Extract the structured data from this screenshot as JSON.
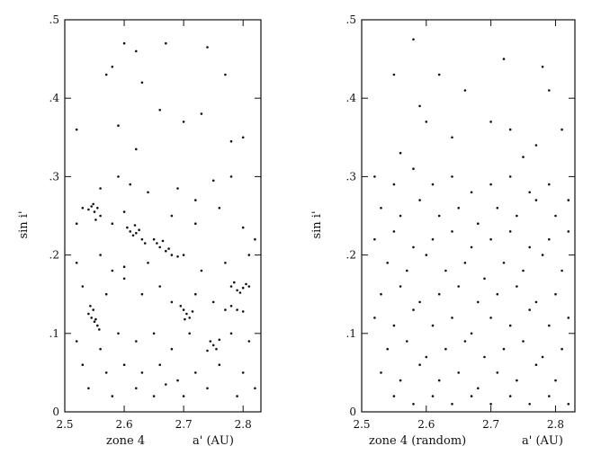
{
  "chart_data": [
    {
      "type": "scatter",
      "xlabel_left": "zone 4",
      "xlabel_right": "a' (AU)",
      "ylabel": "sin i'",
      "xlim": [
        2.5,
        2.83
      ],
      "ylim": [
        0,
        0.5
      ],
      "xticks": [
        2.5,
        2.6,
        2.7,
        2.8
      ],
      "xtick_labels": [
        "2.5",
        "2.6",
        "2.7",
        "2.8"
      ],
      "yticks": [
        0,
        0.1,
        0.2,
        0.3,
        0.4,
        0.5
      ],
      "ytick_labels": [
        "0",
        ".1",
        ".2",
        ".3",
        ".4",
        ".5"
      ],
      "grid": false,
      "points": [
        [
          2.53,
          0.26
        ],
        [
          2.54,
          0.258
        ],
        [
          2.545,
          0.262
        ],
        [
          2.55,
          0.255
        ],
        [
          2.555,
          0.26
        ],
        [
          2.56,
          0.25
        ],
        [
          2.548,
          0.265
        ],
        [
          2.552,
          0.245
        ],
        [
          2.61,
          0.23
        ],
        [
          2.615,
          0.225
        ],
        [
          2.62,
          0.228
        ],
        [
          2.625,
          0.232
        ],
        [
          2.63,
          0.22
        ],
        [
          2.605,
          0.235
        ],
        [
          2.635,
          0.215
        ],
        [
          2.618,
          0.238
        ],
        [
          2.65,
          0.22
        ],
        [
          2.66,
          0.21
        ],
        [
          2.67,
          0.205
        ],
        [
          2.68,
          0.2
        ],
        [
          2.69,
          0.198
        ],
        [
          2.655,
          0.215
        ],
        [
          2.675,
          0.208
        ],
        [
          2.665,
          0.218
        ],
        [
          2.545,
          0.12
        ],
        [
          2.55,
          0.115
        ],
        [
          2.555,
          0.11
        ],
        [
          2.54,
          0.125
        ],
        [
          2.548,
          0.13
        ],
        [
          2.552,
          0.118
        ],
        [
          2.558,
          0.105
        ],
        [
          2.543,
          0.135
        ],
        [
          2.7,
          0.13
        ],
        [
          2.705,
          0.125
        ],
        [
          2.71,
          0.12
        ],
        [
          2.695,
          0.135
        ],
        [
          2.715,
          0.128
        ],
        [
          2.702,
          0.118
        ],
        [
          2.75,
          0.085
        ],
        [
          2.745,
          0.09
        ],
        [
          2.755,
          0.08
        ],
        [
          2.74,
          0.078
        ],
        [
          2.76,
          0.092
        ],
        [
          2.78,
          0.16
        ],
        [
          2.79,
          0.155
        ],
        [
          2.8,
          0.158
        ],
        [
          2.81,
          0.16
        ],
        [
          2.795,
          0.152
        ],
        [
          2.805,
          0.163
        ],
        [
          2.785,
          0.165
        ],
        [
          2.77,
          0.13
        ],
        [
          2.78,
          0.135
        ],
        [
          2.79,
          0.13
        ],
        [
          2.8,
          0.128
        ],
        [
          2.52,
          0.36
        ],
        [
          2.57,
          0.43
        ],
        [
          2.58,
          0.44
        ],
        [
          2.6,
          0.47
        ],
        [
          2.62,
          0.46
        ],
        [
          2.67,
          0.47
        ],
        [
          2.74,
          0.465
        ],
        [
          2.77,
          0.43
        ],
        [
          2.59,
          0.365
        ],
        [
          2.62,
          0.335
        ],
        [
          2.66,
          0.385
        ],
        [
          2.7,
          0.37
        ],
        [
          2.78,
          0.345
        ],
        [
          2.8,
          0.35
        ],
        [
          2.63,
          0.42
        ],
        [
          2.73,
          0.38
        ],
        [
          2.59,
          0.3
        ],
        [
          2.61,
          0.29
        ],
        [
          2.64,
          0.28
        ],
        [
          2.69,
          0.285
        ],
        [
          2.75,
          0.295
        ],
        [
          2.78,
          0.3
        ],
        [
          2.72,
          0.27
        ],
        [
          2.56,
          0.285
        ],
        [
          2.52,
          0.24
        ],
        [
          2.58,
          0.24
        ],
        [
          2.6,
          0.255
        ],
        [
          2.68,
          0.25
        ],
        [
          2.72,
          0.24
        ],
        [
          2.76,
          0.26
        ],
        [
          2.8,
          0.235
        ],
        [
          2.82,
          0.22
        ],
        [
          2.52,
          0.19
        ],
        [
          2.56,
          0.2
        ],
        [
          2.58,
          0.18
        ],
        [
          2.6,
          0.185
        ],
        [
          2.64,
          0.19
        ],
        [
          2.7,
          0.2
        ],
        [
          2.73,
          0.18
        ],
        [
          2.77,
          0.19
        ],
        [
          2.81,
          0.2
        ],
        [
          2.53,
          0.16
        ],
        [
          2.57,
          0.15
        ],
        [
          2.6,
          0.17
        ],
        [
          2.63,
          0.15
        ],
        [
          2.66,
          0.16
        ],
        [
          2.68,
          0.14
        ],
        [
          2.72,
          0.15
        ],
        [
          2.75,
          0.14
        ],
        [
          2.52,
          0.09
        ],
        [
          2.56,
          0.08
        ],
        [
          2.59,
          0.1
        ],
        [
          2.62,
          0.09
        ],
        [
          2.65,
          0.1
        ],
        [
          2.68,
          0.08
        ],
        [
          2.71,
          0.1
        ],
        [
          2.78,
          0.1
        ],
        [
          2.81,
          0.09
        ],
        [
          2.53,
          0.06
        ],
        [
          2.57,
          0.05
        ],
        [
          2.6,
          0.06
        ],
        [
          2.63,
          0.05
        ],
        [
          2.66,
          0.06
        ],
        [
          2.69,
          0.04
        ],
        [
          2.72,
          0.05
        ],
        [
          2.76,
          0.06
        ],
        [
          2.8,
          0.05
        ],
        [
          2.54,
          0.03
        ],
        [
          2.58,
          0.02
        ],
        [
          2.62,
          0.03
        ],
        [
          2.65,
          0.02
        ],
        [
          2.67,
          0.035
        ],
        [
          2.7,
          0.02
        ],
        [
          2.74,
          0.03
        ],
        [
          2.79,
          0.02
        ],
        [
          2.82,
          0.03
        ]
      ]
    },
    {
      "type": "scatter",
      "xlabel_left": "zone 4 (random)",
      "xlabel_right": "a' (AU)",
      "ylabel": "sin i'",
      "xlim": [
        2.5,
        2.83
      ],
      "ylim": [
        0,
        0.5
      ],
      "xticks": [
        2.5,
        2.6,
        2.7,
        2.8
      ],
      "xtick_labels": [
        "2.5",
        "2.6",
        "2.7",
        "2.8"
      ],
      "yticks": [
        0,
        0.1,
        0.2,
        0.3,
        0.4,
        0.5
      ],
      "ytick_labels": [
        "0",
        ".1",
        ".2",
        ".3",
        ".4",
        ".5"
      ],
      "grid": false,
      "points": [
        [
          2.55,
          0.43
        ],
        [
          2.58,
          0.475
        ],
        [
          2.62,
          0.43
        ],
        [
          2.66,
          0.41
        ],
        [
          2.72,
          0.45
        ],
        [
          2.78,
          0.44
        ],
        [
          2.79,
          0.41
        ],
        [
          2.59,
          0.39
        ],
        [
          2.6,
          0.37
        ],
        [
          2.64,
          0.35
        ],
        [
          2.7,
          0.37
        ],
        [
          2.73,
          0.36
        ],
        [
          2.77,
          0.34
        ],
        [
          2.81,
          0.36
        ],
        [
          2.56,
          0.33
        ],
        [
          2.75,
          0.325
        ],
        [
          2.52,
          0.3
        ],
        [
          2.55,
          0.29
        ],
        [
          2.58,
          0.31
        ],
        [
          2.61,
          0.29
        ],
        [
          2.64,
          0.3
        ],
        [
          2.67,
          0.28
        ],
        [
          2.7,
          0.29
        ],
        [
          2.73,
          0.3
        ],
        [
          2.76,
          0.28
        ],
        [
          2.79,
          0.29
        ],
        [
          2.82,
          0.27
        ],
        [
          2.53,
          0.26
        ],
        [
          2.56,
          0.25
        ],
        [
          2.59,
          0.27
        ],
        [
          2.62,
          0.25
        ],
        [
          2.65,
          0.26
        ],
        [
          2.68,
          0.24
        ],
        [
          2.71,
          0.26
        ],
        [
          2.74,
          0.25
        ],
        [
          2.77,
          0.27
        ],
        [
          2.8,
          0.25
        ],
        [
          2.52,
          0.22
        ],
        [
          2.55,
          0.23
        ],
        [
          2.58,
          0.21
        ],
        [
          2.61,
          0.22
        ],
        [
          2.64,
          0.23
        ],
        [
          2.67,
          0.21
        ],
        [
          2.7,
          0.22
        ],
        [
          2.73,
          0.23
        ],
        [
          2.76,
          0.21
        ],
        [
          2.79,
          0.22
        ],
        [
          2.82,
          0.23
        ],
        [
          2.54,
          0.19
        ],
        [
          2.57,
          0.18
        ],
        [
          2.6,
          0.2
        ],
        [
          2.63,
          0.18
        ],
        [
          2.66,
          0.19
        ],
        [
          2.69,
          0.17
        ],
        [
          2.72,
          0.19
        ],
        [
          2.75,
          0.18
        ],
        [
          2.78,
          0.2
        ],
        [
          2.81,
          0.18
        ],
        [
          2.53,
          0.15
        ],
        [
          2.56,
          0.16
        ],
        [
          2.59,
          0.14
        ],
        [
          2.62,
          0.15
        ],
        [
          2.65,
          0.16
        ],
        [
          2.68,
          0.14
        ],
        [
          2.71,
          0.15
        ],
        [
          2.74,
          0.16
        ],
        [
          2.77,
          0.14
        ],
        [
          2.8,
          0.15
        ],
        [
          2.52,
          0.12
        ],
        [
          2.55,
          0.11
        ],
        [
          2.58,
          0.13
        ],
        [
          2.61,
          0.11
        ],
        [
          2.64,
          0.12
        ],
        [
          2.67,
          0.1
        ],
        [
          2.7,
          0.12
        ],
        [
          2.73,
          0.11
        ],
        [
          2.76,
          0.13
        ],
        [
          2.79,
          0.11
        ],
        [
          2.82,
          0.12
        ],
        [
          2.54,
          0.08
        ],
        [
          2.57,
          0.09
        ],
        [
          2.6,
          0.07
        ],
        [
          2.63,
          0.08
        ],
        [
          2.66,
          0.09
        ],
        [
          2.69,
          0.07
        ],
        [
          2.72,
          0.08
        ],
        [
          2.75,
          0.09
        ],
        [
          2.78,
          0.07
        ],
        [
          2.81,
          0.08
        ],
        [
          2.53,
          0.05
        ],
        [
          2.56,
          0.04
        ],
        [
          2.59,
          0.06
        ],
        [
          2.62,
          0.04
        ],
        [
          2.65,
          0.05
        ],
        [
          2.68,
          0.03
        ],
        [
          2.71,
          0.05
        ],
        [
          2.74,
          0.04
        ],
        [
          2.77,
          0.06
        ],
        [
          2.8,
          0.04
        ],
        [
          2.55,
          0.02
        ],
        [
          2.58,
          0.01
        ],
        [
          2.61,
          0.02
        ],
        [
          2.64,
          0.01
        ],
        [
          2.67,
          0.02
        ],
        [
          2.7,
          0.01
        ],
        [
          2.73,
          0.02
        ],
        [
          2.76,
          0.01
        ],
        [
          2.79,
          0.02
        ],
        [
          2.82,
          0.01
        ]
      ]
    }
  ]
}
